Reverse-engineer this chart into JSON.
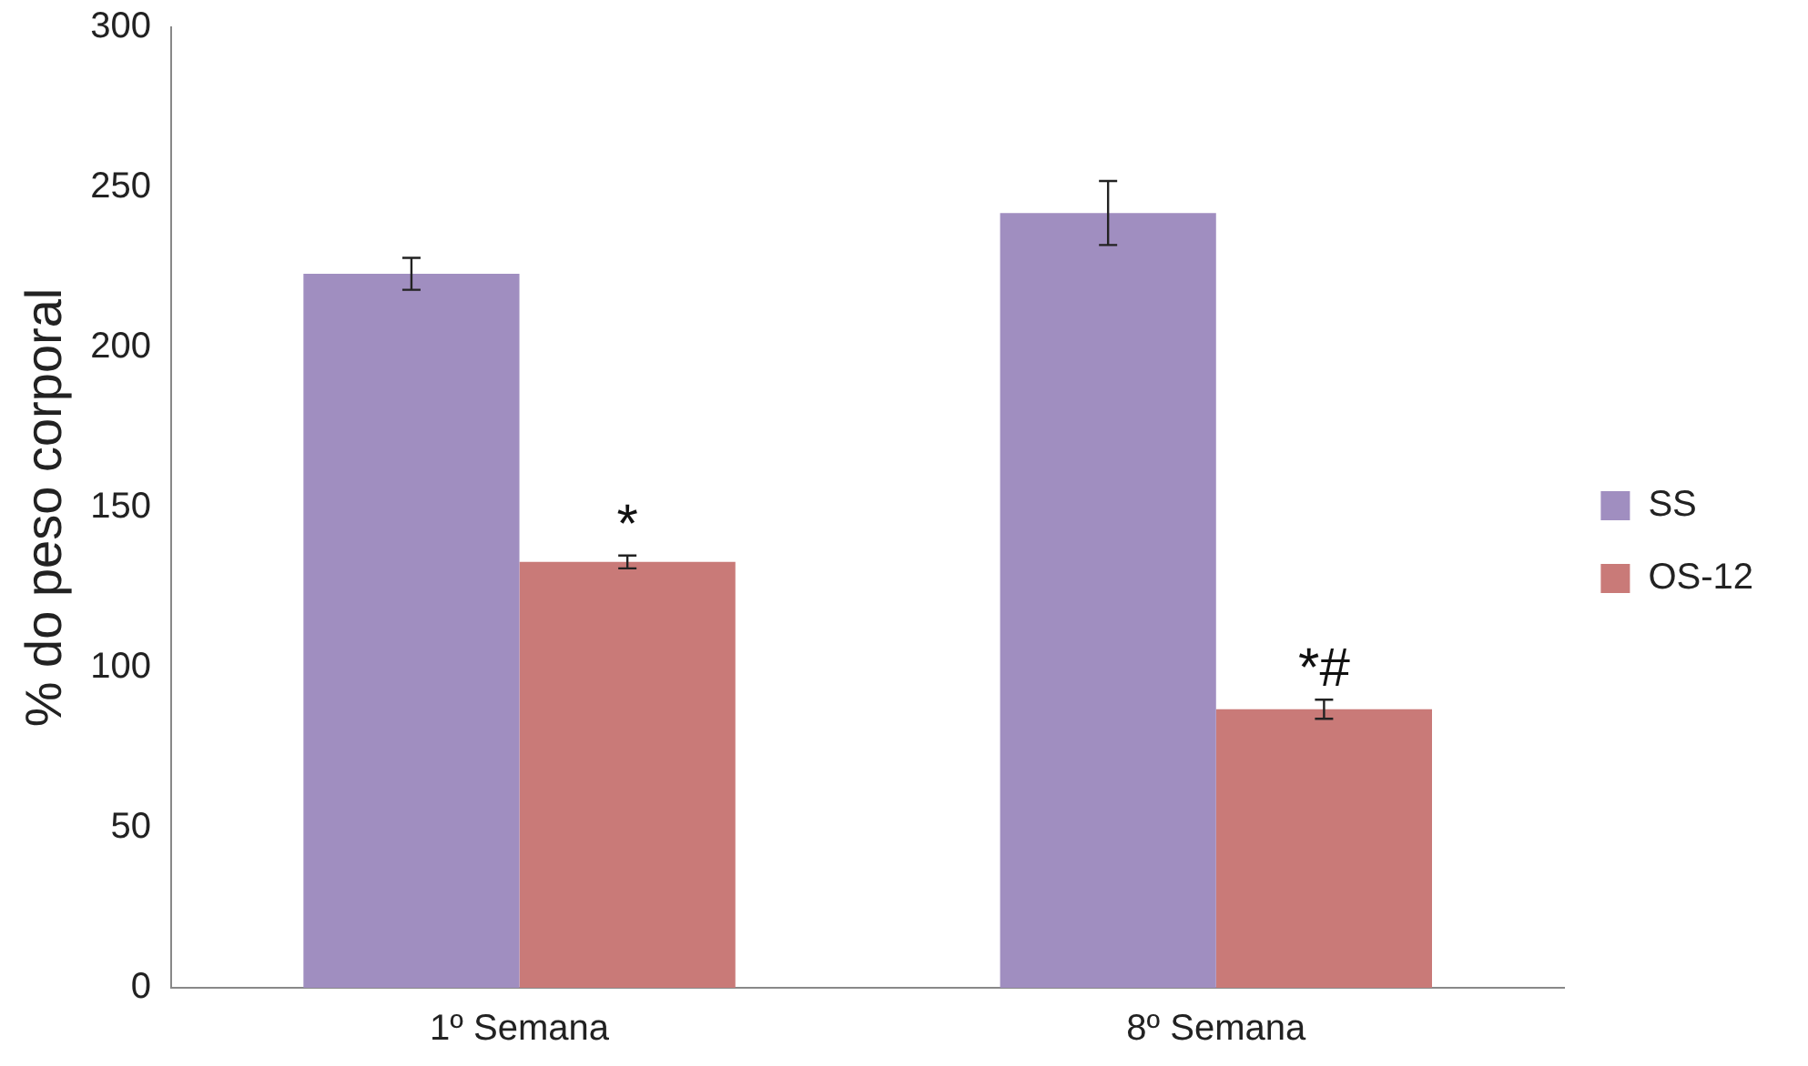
{
  "chart_data": {
    "type": "bar",
    "ylabel": "% do peso corporal",
    "categories": [
      "1º Semana",
      "8º Semana"
    ],
    "series": [
      {
        "name": "SS",
        "color": "#a08ec0",
        "values": [
          223,
          242
        ],
        "errors": [
          5,
          10
        ]
      },
      {
        "name": "OS-12",
        "color": "#c97a78",
        "values": [
          133,
          87
        ],
        "errors": [
          2,
          3
        ]
      }
    ],
    "annotations": [
      {
        "text": "*",
        "x": "1º Semana",
        "y": 140
      },
      {
        "text": "*#",
        "x": "8º Semana",
        "y": 95
      }
    ],
    "ylim": [
      0,
      300
    ],
    "yticks": [
      0,
      50,
      100,
      150,
      200,
      250,
      300
    ],
    "grid": false,
    "legend": "right"
  }
}
